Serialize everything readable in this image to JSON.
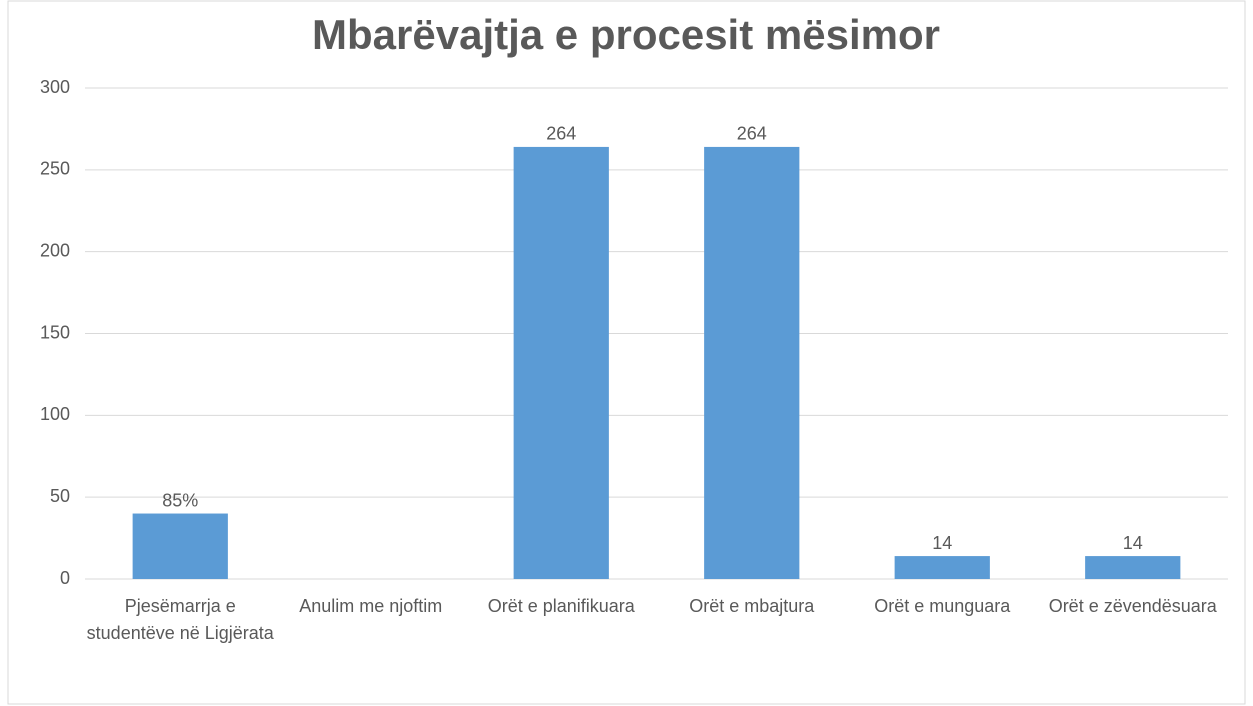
{
  "chart_data": {
    "type": "bar",
    "title": "Mbarëvajtja e procesit mësimor",
    "categories": [
      "Pjesëmarrja e studentëve  në Ligjërata",
      "Anulim me njoftim",
      "Orët e planifikuara",
      "Orët e mbajtura",
      "Orët e munguara",
      "Orët e zëvendësuara"
    ],
    "values": [
      40,
      null,
      264,
      264,
      14,
      14
    ],
    "color": "#5b9bd5",
    "annotations": [
      {
        "text": "85%",
        "category": "Pjesëmarrja e studentëve  në Ligjërata"
      }
    ],
    "ylim": [
      0,
      300
    ],
    "yticks": [
      0,
      50,
      100,
      150,
      200,
      250,
      300
    ],
    "grid": true
  }
}
